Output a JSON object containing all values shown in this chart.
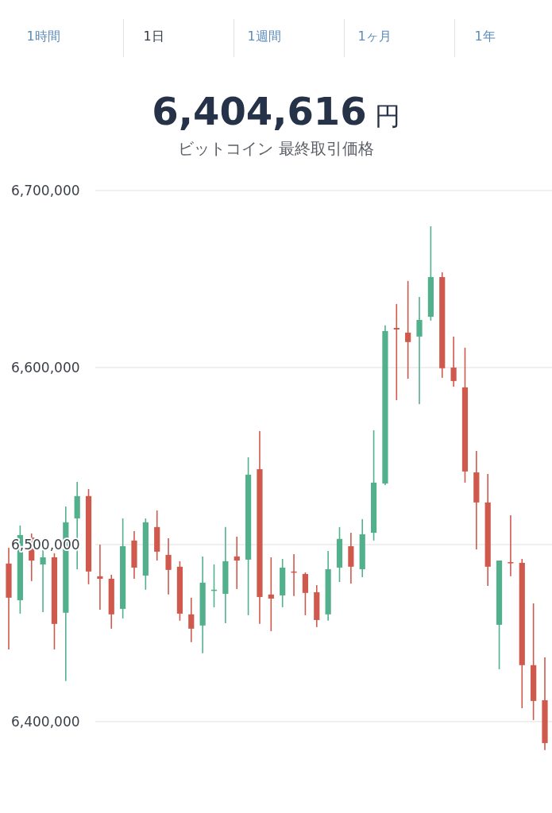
{
  "chart_data": {
    "type": "candlestick",
    "title": "6,404,616 円",
    "subtitle": "ビットコイン 最終取引価格",
    "annotations": [
      "1時間",
      "1日",
      "1週間",
      "1ヶ月",
      "1年"
    ],
    "categories": [
      null,
      null,
      null,
      null,
      null,
      null,
      null,
      null,
      null,
      null,
      null,
      null,
      null,
      null,
      null,
      null,
      null,
      null,
      null,
      null,
      null,
      null,
      null,
      null,
      null,
      null,
      null,
      null,
      null,
      null,
      null,
      null,
      null,
      null,
      null,
      null,
      null,
      null,
      null,
      null,
      null,
      null,
      null,
      null,
      null,
      null,
      null,
      null
    ],
    "ohlc": [
      [
        6489300,
        6498200,
        6440800,
        6470000
      ],
      [
        6468600,
        6510800,
        6461000,
        6505400
      ],
      [
        6504000,
        6506300,
        6479400,
        6491000
      ],
      [
        6488800,
        6496900,
        6461900,
        6492800
      ],
      [
        6492800,
        6495100,
        6440800,
        6455200
      ],
      [
        6461500,
        6521500,
        6422900,
        6512600
      ],
      [
        6514800,
        6535400,
        6486100,
        6527400
      ],
      [
        6527400,
        6531400,
        6477600,
        6484800
      ],
      [
        6482100,
        6500000,
        6463200,
        6480700
      ],
      [
        6480700,
        6483000,
        6452500,
        6460600
      ],
      [
        6463700,
        6514800,
        6458300,
        6499100
      ],
      [
        6502300,
        6507600,
        6480700,
        6487000
      ],
      [
        6482500,
        6514800,
        6474500,
        6512600
      ],
      [
        6509900,
        6519300,
        6491000,
        6496000
      ],
      [
        6494200,
        6503600,
        6471800,
        6485700
      ],
      [
        6487500,
        6490600,
        6457000,
        6461000
      ],
      [
        6460600,
        6470000,
        6444900,
        6452500
      ],
      [
        6454300,
        6493300,
        6438600,
        6478500
      ],
      [
        6474500,
        6488800,
        6464600,
        6474500
      ],
      [
        6472200,
        6509900,
        6455600,
        6490600
      ],
      [
        6493300,
        6504500,
        6474900,
        6491000
      ],
      [
        6491500,
        6549300,
        6460100,
        6539500
      ],
      [
        6542600,
        6564100,
        6455200,
        6470400
      ],
      [
        6471800,
        6492800,
        6451100,
        6469500
      ],
      [
        6471300,
        6491900,
        6464600,
        6487000
      ],
      [
        6484800,
        6494600,
        6470900,
        6484300
      ],
      [
        6483400,
        6484300,
        6460100,
        6472700
      ],
      [
        6473100,
        6477100,
        6453400,
        6457400
      ],
      [
        6460600,
        6496400,
        6457000,
        6486100
      ],
      [
        6487000,
        6509900,
        6478900,
        6503200
      ],
      [
        6499100,
        6506700,
        6478000,
        6487500
      ],
      [
        6486100,
        6514400,
        6481600,
        6505800
      ],
      [
        6506700,
        6564600,
        6502300,
        6535000
      ],
      [
        6534500,
        6623800,
        6533600,
        6620600
      ],
      [
        6622400,
        6635900,
        6581600,
        6621500
      ],
      [
        6619700,
        6648900,
        6593700,
        6614400
      ],
      [
        6617500,
        6639900,
        6579400,
        6626900
      ],
      [
        6628700,
        6679800,
        6626500,
        6651100
      ],
      [
        6651100,
        6653800,
        6594200,
        6599600
      ],
      [
        6600000,
        6617500,
        6589200,
        6592400
      ],
      [
        6588800,
        6611200,
        6535000,
        6541300
      ],
      [
        6540800,
        6552900,
        6497300,
        6523800
      ],
      [
        6523800,
        6539900,
        6476700,
        6487500
      ],
      [
        6454700,
        6491000,
        6429600,
        6491000
      ],
      [
        6490100,
        6516600,
        6482100,
        6489700
      ],
      [
        6489700,
        6491900,
        6407600,
        6431900
      ],
      [
        6431900,
        6466800,
        6400900,
        6411700
      ],
      [
        6412100,
        6436300,
        6383900,
        6387900
      ]
    ],
    "colors": [
      "#d0594d",
      "#52b08d",
      "#d0594d",
      "#52b08d",
      "#d0594d",
      "#52b08d",
      "#52b08d",
      "#d0594d",
      "#d0594d",
      "#d0594d",
      "#52b08d",
      "#d0594d",
      "#52b08d",
      "#d0594d",
      "#d0594d",
      "#d0594d",
      "#d0594d",
      "#52b08d",
      "#52b08d",
      "#52b08d",
      "#d0594d",
      "#52b08d",
      "#d0594d",
      "#d0594d",
      "#52b08d",
      "#d0594d",
      "#d0594d",
      "#d0594d",
      "#52b08d",
      "#52b08d",
      "#d0594d",
      "#52b08d",
      "#52b08d",
      "#52b08d",
      "#d0594d",
      "#d0594d",
      "#52b08d",
      "#52b08d",
      "#d0594d",
      "#d0594d",
      "#d0594d",
      "#d0594d",
      "#d0594d",
      "#52b08d",
      "#d0594d",
      "#d0594d",
      "#d0594d",
      "#d0594d"
    ],
    "ylim": [
      6348400,
      6807600
    ],
    "yticks": [
      {
        "value": 6400000,
        "label": "6,400,000"
      },
      {
        "value": 6500000,
        "label": "6,500,000"
      },
      {
        "value": 6600000,
        "label": "6,600,000"
      },
      {
        "value": 6700000,
        "label": "6,700,000"
      }
    ],
    "grid": "y",
    "tick_labels": "y"
  }
}
